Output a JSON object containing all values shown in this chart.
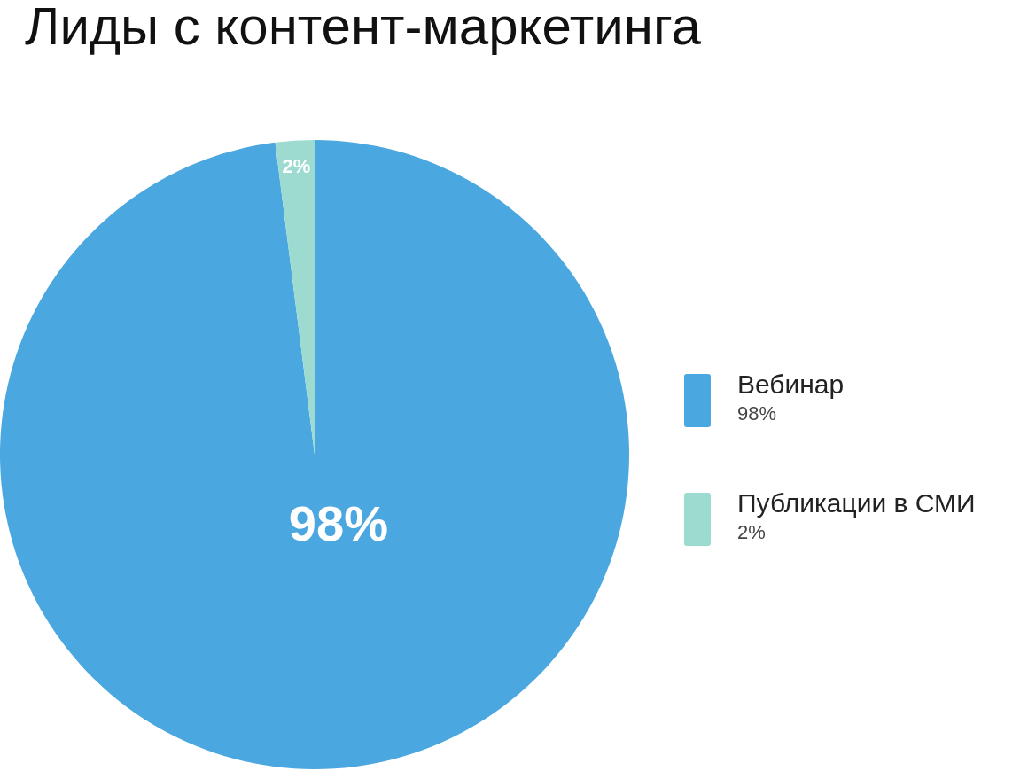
{
  "chart_data": {
    "type": "pie",
    "title": "Лиды с контент-маркетинга",
    "categories": [
      "Вебинар",
      "Публикации в СМИ"
    ],
    "values": [
      98,
      2
    ],
    "value_labels": [
      "98%",
      "2%"
    ],
    "colors": [
      "#4aa7df",
      "#9ddbd0"
    ],
    "legend": "right"
  }
}
